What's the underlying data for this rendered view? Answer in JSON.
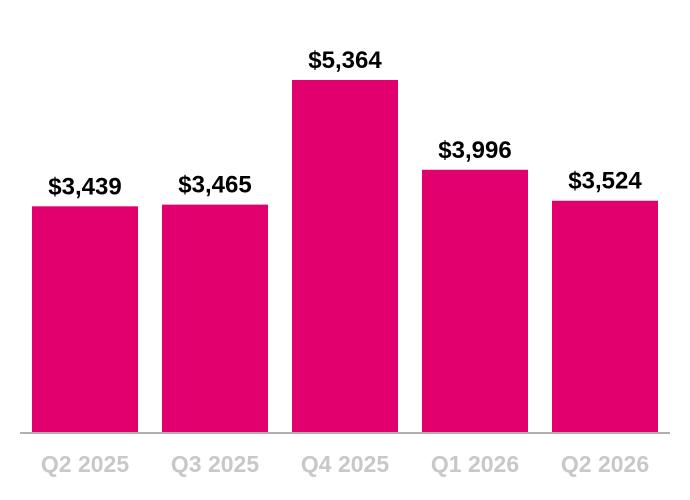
{
  "chart_data": {
    "type": "bar",
    "categories": [
      "Q2 2025",
      "Q3 2025",
      "Q4 2025",
      "Q1 2026",
      "Q2 2026"
    ],
    "values": [
      3439,
      3465,
      5364,
      3996,
      3524
    ],
    "data_labels": [
      "$3,439",
      "$3,465",
      "$5,364",
      "$3,996",
      "$3,524"
    ],
    "title": "",
    "xlabel": "",
    "ylabel": "",
    "ylim": [
      0,
      5364
    ],
    "grid": false,
    "legend": "none",
    "colors": {
      "bar": "#e2006f",
      "axis": "#b0b0b0",
      "tick_label": "#c8c8c8",
      "data_label": "#000000"
    }
  }
}
